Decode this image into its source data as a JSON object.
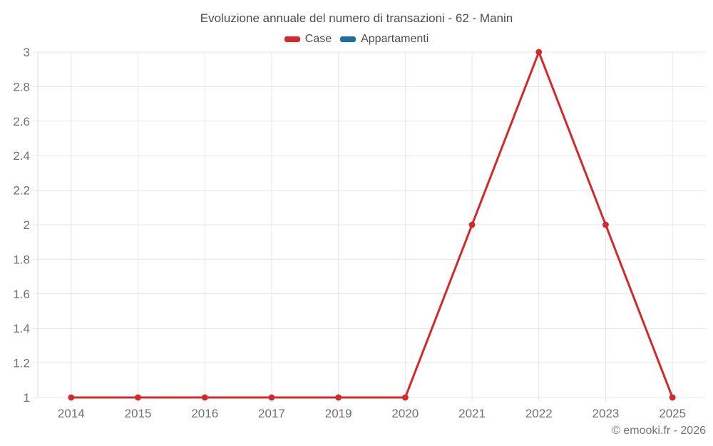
{
  "title": "Evoluzione annuale del numero di transazioni - 62 - Manin",
  "legend": {
    "items": [
      {
        "label": "Case",
        "color": "#d5282b"
      },
      {
        "label": "Appartamenti",
        "color": "#1c6ea4"
      }
    ]
  },
  "footer": {
    "copyright": "© emooki.fr - 2026"
  },
  "colors": {
    "grid": "#e7e7e7",
    "axis": "#dcdcdc",
    "tick_label": "#707070",
    "title_text": "#4d4d4d"
  },
  "chart_data": {
    "type": "line",
    "title": "Evoluzione annuale del numero di transazioni - 62 - Manin",
    "categories": [
      "2014",
      "2015",
      "2016",
      "2017",
      "2019",
      "2020",
      "2021",
      "2022",
      "2023",
      "2025"
    ],
    "series": [
      {
        "name": "Case",
        "color": "#d5282b",
        "values": [
          1,
          1,
          1,
          1,
          1,
          1,
          2,
          3,
          2,
          1
        ]
      },
      {
        "name": "Appartamenti",
        "color": "#1c6ea4",
        "values": []
      }
    ],
    "xlabel": "",
    "ylabel": "",
    "ylim": [
      1,
      3
    ],
    "ytick_step": 0.2,
    "grid": true,
    "legend_position": "top",
    "marker": "circle"
  }
}
